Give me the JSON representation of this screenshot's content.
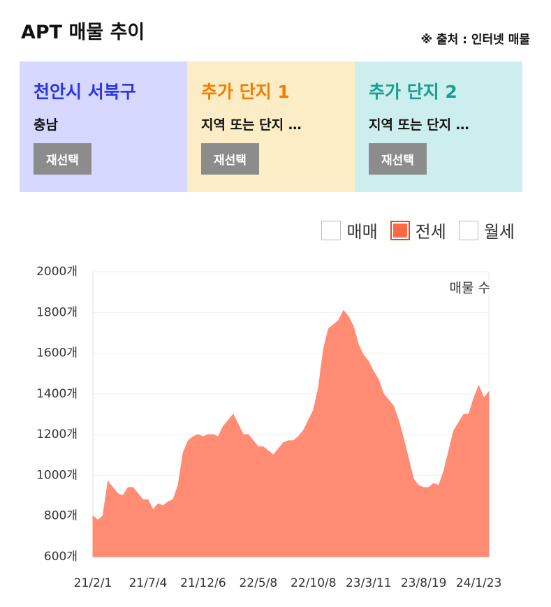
{
  "header": {
    "title": "APT 매물 추이",
    "source": "※ 출처 : 인터넷 매물"
  },
  "cards": [
    {
      "title": "천안시 서북구",
      "subtitle": "충남",
      "button": "재선택"
    },
    {
      "title": "추가 단지 1",
      "subtitle": "지역 또는 단지 …",
      "button": "재선택"
    },
    {
      "title": "추가 단지 2",
      "subtitle": "지역 또는 단지 …",
      "button": "재선택"
    }
  ],
  "filters": [
    {
      "label": "매매",
      "checked": false
    },
    {
      "label": "전세",
      "checked": true
    },
    {
      "label": "월세",
      "checked": false
    }
  ],
  "chart_data": {
    "type": "area",
    "annotation": "매물 수",
    "color": "#ff8c73",
    "grid": true,
    "categories": [
      "21/2/1",
      null,
      null,
      null,
      null,
      null,
      null,
      null,
      null,
      null,
      null,
      "21/7/4",
      null,
      null,
      null,
      null,
      null,
      null,
      null,
      null,
      null,
      null,
      "21/12/6",
      null,
      null,
      null,
      null,
      null,
      null,
      null,
      null,
      null,
      null,
      "22/5/8",
      null,
      null,
      null,
      null,
      null,
      null,
      null,
      null,
      null,
      null,
      "22/10/8",
      null,
      null,
      null,
      null,
      null,
      null,
      null,
      null,
      null,
      null,
      "23/3/11",
      null,
      null,
      null,
      null,
      null,
      null,
      null,
      null,
      null,
      null,
      "23/8/19",
      null,
      null,
      null,
      null,
      null,
      null,
      null,
      null,
      null,
      null,
      "24/1/23",
      null,
      null
    ],
    "values": [
      800,
      780,
      800,
      970,
      940,
      910,
      900,
      940,
      940,
      910,
      880,
      880,
      830,
      860,
      850,
      870,
      880,
      950,
      1110,
      1170,
      1190,
      1200,
      1190,
      1200,
      1200,
      1190,
      1240,
      1270,
      1300,
      1250,
      1200,
      1200,
      1170,
      1140,
      1140,
      1120,
      1100,
      1130,
      1160,
      1170,
      1170,
      1190,
      1220,
      1270,
      1320,
      1430,
      1620,
      1720,
      1740,
      1760,
      1810,
      1780,
      1730,
      1640,
      1590,
      1560,
      1510,
      1470,
      1400,
      1370,
      1340,
      1270,
      1180,
      1080,
      980,
      950,
      940,
      940,
      960,
      950,
      1020,
      1120,
      1220,
      1260,
      1300,
      1300,
      1380,
      1440,
      1380,
      1410
    ],
    "ylim": [
      600,
      2000
    ],
    "yticks": [
      {
        "value": 600,
        "label": "600개"
      },
      {
        "value": 800,
        "label": "800개"
      },
      {
        "value": 1000,
        "label": "1000개"
      },
      {
        "value": 1200,
        "label": "1200개"
      },
      {
        "value": 1400,
        "label": "1400개"
      },
      {
        "value": 1600,
        "label": "1600개"
      },
      {
        "value": 1800,
        "label": "1800개"
      },
      {
        "value": 2000,
        "label": "2000개"
      }
    ]
  }
}
